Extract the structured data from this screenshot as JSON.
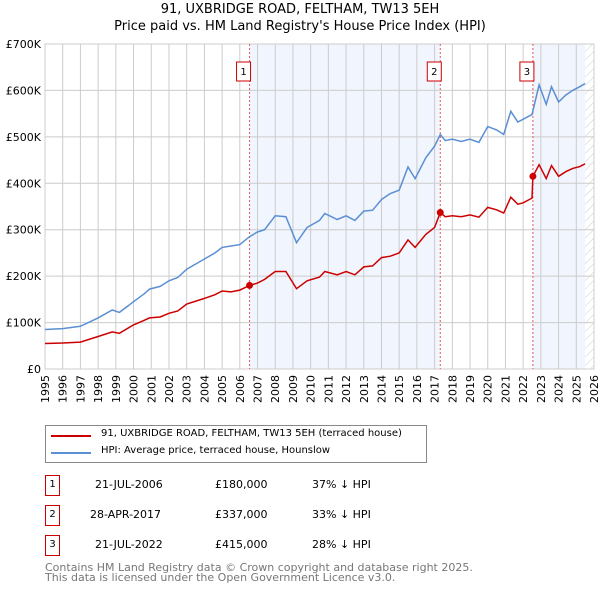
{
  "chart_data": {
    "type": "line",
    "title": "91, UXBRIDGE ROAD, FELTHAM, TW13 5EH",
    "subtitle": "Price paid vs. HM Land Registry's House Price Index (HPI)",
    "xlim": [
      1995,
      2026
    ],
    "ylim": [
      0,
      700000
    ],
    "yticks": [
      {
        "v": 0,
        "l": "£0"
      },
      {
        "v": 100000,
        "l": "£100K"
      },
      {
        "v": 200000,
        "l": "£200K"
      },
      {
        "v": 300000,
        "l": "£300K"
      },
      {
        "v": 400000,
        "l": "£400K"
      },
      {
        "v": 500000,
        "l": "£500K"
      },
      {
        "v": 600000,
        "l": "£600K"
      },
      {
        "v": 700000,
        "l": "£700K"
      }
    ],
    "xticks": [
      "1995",
      "1996",
      "1997",
      "1998",
      "1999",
      "2000",
      "2001",
      "2002",
      "2003",
      "2004",
      "2005",
      "2006",
      "2007",
      "2008",
      "2009",
      "2010",
      "2011",
      "2012",
      "2013",
      "2014",
      "2015",
      "2016",
      "2017",
      "2018",
      "2019",
      "2020",
      "2021",
      "2022",
      "2023",
      "2024",
      "2025",
      "2026"
    ],
    "grid": true,
    "shaded": [
      [
        2006.55,
        2017.32
      ],
      [
        2022.55,
        2025.5
      ]
    ],
    "hatched_from": 2025.5,
    "series": [
      {
        "name": "HPI: Average price, terraced house, Hounslow",
        "color": "#5b8fd4",
        "x": [
          1995,
          1996,
          1997,
          1998,
          1998.8,
          1999.2,
          2000,
          2000.6,
          2000.9,
          2001.5,
          2002,
          2002.5,
          2003,
          2004,
          2004.6,
          2005,
          2005.5,
          2006,
          2006.55,
          2007,
          2007.4,
          2008,
          2008.6,
          2009.2,
          2009.8,
          2010.5,
          2010.8,
          2011.5,
          2012,
          2012.5,
          2013,
          2013.5,
          2014,
          2014.5,
          2015,
          2015.5,
          2015.9,
          2016.5,
          2017,
          2017.32,
          2017.6,
          2018,
          2018.5,
          2019,
          2019.5,
          2020,
          2020.5,
          2020.9,
          2021.3,
          2021.7,
          2022,
          2022.5,
          2022.9,
          2023.3,
          2023.6,
          2024,
          2024.4,
          2024.8,
          2025.2,
          2025.5
        ],
        "y": [
          85000,
          87000,
          92000,
          110000,
          127000,
          122000,
          145000,
          162000,
          172000,
          178000,
          190000,
          197000,
          215000,
          237000,
          250000,
          262000,
          265000,
          268000,
          285000,
          295000,
          300000,
          330000,
          328000,
          272000,
          305000,
          320000,
          335000,
          322000,
          330000,
          320000,
          340000,
          342000,
          365000,
          378000,
          385000,
          435000,
          410000,
          455000,
          480000,
          505000,
          492000,
          495000,
          490000,
          495000,
          488000,
          522000,
          515000,
          505000,
          555000,
          532000,
          538000,
          548000,
          612000,
          570000,
          608000,
          575000,
          590000,
          600000,
          608000,
          615000
        ]
      },
      {
        "name": "91, UXBRIDGE ROAD, FELTHAM, TW13 5EH (terraced house)",
        "color": "#cc0000",
        "x": [
          1995,
          1996,
          1997,
          1998,
          1998.8,
          1999.2,
          2000,
          2000.6,
          2000.9,
          2001.5,
          2002,
          2002.5,
          2003,
          2004,
          2004.6,
          2005,
          2005.5,
          2006,
          2006.55,
          2007,
          2007.4,
          2008,
          2008.6,
          2009.2,
          2009.8,
          2010.5,
          2010.8,
          2011.5,
          2012,
          2012.5,
          2013,
          2013.5,
          2014,
          2014.5,
          2015,
          2015.5,
          2015.9,
          2016.5,
          2017,
          2017.32,
          2017.6,
          2018,
          2018.5,
          2019,
          2019.5,
          2020,
          2020.5,
          2020.9,
          2021.3,
          2021.7,
          2022,
          2022.5,
          2022.55,
          2022.9,
          2023.3,
          2023.6,
          2024,
          2024.4,
          2024.8,
          2025.2,
          2025.5
        ],
        "y": [
          55000,
          56000,
          58000,
          70000,
          80000,
          77000,
          95000,
          105000,
          110000,
          112000,
          120000,
          125000,
          140000,
          152000,
          160000,
          168000,
          166000,
          170000,
          180000,
          185000,
          193000,
          210000,
          210000,
          173000,
          190000,
          198000,
          210000,
          203000,
          210000,
          203000,
          220000,
          222000,
          240000,
          243000,
          250000,
          278000,
          262000,
          290000,
          305000,
          337000,
          328000,
          330000,
          328000,
          332000,
          327000,
          348000,
          343000,
          336000,
          370000,
          355000,
          358000,
          368000,
          415000,
          440000,
          410000,
          438000,
          415000,
          425000,
          432000,
          436000,
          442000
        ]
      }
    ],
    "markers": [
      {
        "id": "1",
        "x": 2006.55,
        "y": 180000
      },
      {
        "id": "2",
        "x": 2017.32,
        "y": 337000
      },
      {
        "id": "3",
        "x": 2022.55,
        "y": 415000
      }
    ]
  },
  "legend": [
    "91, UXBRIDGE ROAD, FELTHAM, TW13 5EH (terraced house)",
    "HPI: Average price, terraced house, Hounslow"
  ],
  "transactions": [
    {
      "id": "1",
      "date": "21-JUL-2006",
      "price": "£180,000",
      "hpi": "37% ↓ HPI"
    },
    {
      "id": "2",
      "date": "28-APR-2017",
      "price": "£337,000",
      "hpi": "33% ↓ HPI"
    },
    {
      "id": "3",
      "date": "21-JUL-2022",
      "price": "£415,000",
      "hpi": "28% ↓ HPI"
    }
  ],
  "footer": [
    "Contains HM Land Registry data © Crown copyright and database right 2025.",
    "This data is licensed under the Open Government Licence v3.0."
  ]
}
